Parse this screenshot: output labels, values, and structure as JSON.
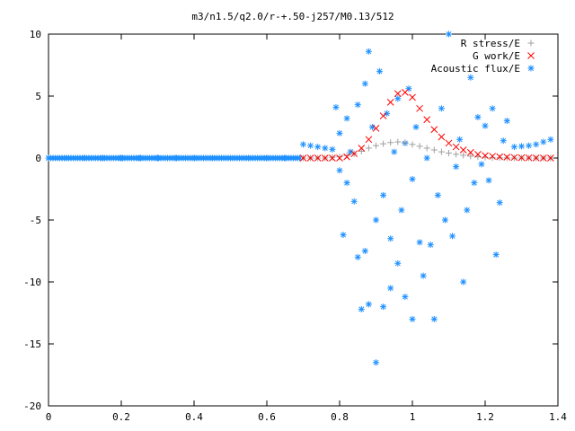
{
  "chart_data": {
    "type": "scatter",
    "title": "m3/n1.5/q2.0/r-+.50-j257/M0.13/512",
    "xlabel": "",
    "ylabel": "",
    "xlim": [
      0,
      1.4
    ],
    "ylim": [
      -20,
      10
    ],
    "xticks": [
      "0",
      "0.2",
      "0.4",
      "0.6",
      "0.8",
      "1",
      "1.2",
      "1.4"
    ],
    "yticks": [
      "-20",
      "-15",
      "-10",
      "-5",
      "0",
      "5",
      "10"
    ],
    "grid": false,
    "legend_position": "top-right",
    "series": [
      {
        "name": "R stress/E",
        "marker": "plus",
        "color": "#a0a0a0",
        "x": [
          0.7,
          0.72,
          0.74,
          0.76,
          0.78,
          0.8,
          0.82,
          0.84,
          0.86,
          0.88,
          0.9,
          0.92,
          0.94,
          0.96,
          0.98,
          1.0,
          1.02,
          1.04,
          1.06,
          1.08,
          1.1,
          1.12,
          1.14,
          1.16,
          1.18,
          1.2,
          1.22,
          1.24,
          1.26,
          1.28,
          1.3,
          1.32,
          1.34,
          1.36,
          1.38
        ],
        "y": [
          0.0,
          0.0,
          0.0,
          0.0,
          0.05,
          0.1,
          0.2,
          0.35,
          0.55,
          0.8,
          1.0,
          1.15,
          1.25,
          1.3,
          1.25,
          1.1,
          0.95,
          0.8,
          0.65,
          0.5,
          0.4,
          0.3,
          0.22,
          0.15,
          0.1,
          0.06,
          0.03,
          0.02,
          0.01,
          0.0,
          0.0,
          0.0,
          0.0,
          0.0,
          0.0
        ]
      },
      {
        "name": "G work/E",
        "marker": "x",
        "color": "#ff0000",
        "x": [
          0.7,
          0.72,
          0.74,
          0.76,
          0.78,
          0.8,
          0.82,
          0.84,
          0.86,
          0.88,
          0.9,
          0.92,
          0.94,
          0.96,
          0.98,
          1.0,
          1.02,
          1.04,
          1.06,
          1.08,
          1.1,
          1.12,
          1.14,
          1.16,
          1.18,
          1.2,
          1.22,
          1.24,
          1.26,
          1.28,
          1.3,
          1.32,
          1.34,
          1.36,
          1.38
        ],
        "y": [
          0.0,
          0.0,
          0.0,
          0.0,
          0.0,
          0.0,
          0.1,
          0.35,
          0.8,
          1.5,
          2.4,
          3.4,
          4.5,
          5.2,
          5.3,
          4.9,
          4.0,
          3.1,
          2.3,
          1.7,
          1.2,
          0.9,
          0.65,
          0.45,
          0.3,
          0.2,
          0.14,
          0.1,
          0.07,
          0.05,
          0.03,
          0.02,
          0.01,
          0.0,
          0.0
        ]
      },
      {
        "name": "Acoustic flux/E",
        "marker": "star",
        "color": "#1e90ff",
        "x": [
          0.0,
          0.05,
          0.1,
          0.15,
          0.2,
          0.25,
          0.3,
          0.35,
          0.4,
          0.45,
          0.5,
          0.55,
          0.6,
          0.65,
          0.69,
          0.7,
          0.72,
          0.74,
          0.76,
          0.78,
          0.79,
          0.8,
          0.8,
          0.81,
          0.82,
          0.82,
          0.83,
          0.84,
          0.85,
          0.85,
          0.86,
          0.87,
          0.87,
          0.88,
          0.88,
          0.89,
          0.9,
          0.9,
          0.91,
          0.92,
          0.92,
          0.93,
          0.94,
          0.94,
          0.95,
          0.96,
          0.96,
          0.97,
          0.98,
          0.98,
          0.99,
          1.0,
          1.0,
          1.01,
          1.02,
          1.03,
          1.04,
          1.05,
          1.06,
          1.07,
          1.08,
          1.09,
          1.1,
          1.11,
          1.12,
          1.13,
          1.14,
          1.15,
          1.16,
          1.17,
          1.18,
          1.19,
          1.2,
          1.21,
          1.22,
          1.23,
          1.24,
          1.25,
          1.26,
          1.28,
          1.3,
          1.32,
          1.34,
          1.36,
          1.38
        ],
        "y": [
          0.0,
          0.0,
          0.0,
          0.0,
          0.0,
          0.0,
          0.0,
          0.0,
          0.0,
          0.0,
          0.0,
          0.0,
          0.0,
          0.0,
          0.0,
          1.1,
          1.0,
          0.9,
          0.8,
          0.7,
          4.1,
          -1.0,
          2.0,
          -6.2,
          3.2,
          -2.0,
          0.5,
          -3.5,
          -8.0,
          4.3,
          -12.2,
          6.0,
          -7.5,
          8.6,
          -11.8,
          2.5,
          -16.5,
          -5.0,
          7.0,
          -12.0,
          -3.0,
          3.6,
          -10.5,
          -6.5,
          0.5,
          -8.5,
          4.8,
          -4.2,
          -11.2,
          1.2,
          5.6,
          -13.0,
          -1.7,
          2.5,
          -6.8,
          -9.5,
          0.0,
          -7.0,
          -13.0,
          -3.0,
          4.0,
          -5.0,
          10.0,
          -6.3,
          -0.7,
          1.5,
          -10.0,
          -4.2,
          6.5,
          -2.0,
          3.3,
          -0.5,
          2.6,
          -1.8,
          4.0,
          -7.8,
          -3.6,
          1.4,
          3.0,
          0.9,
          0.95,
          1.0,
          1.1,
          1.3,
          1.5
        ]
      }
    ]
  }
}
